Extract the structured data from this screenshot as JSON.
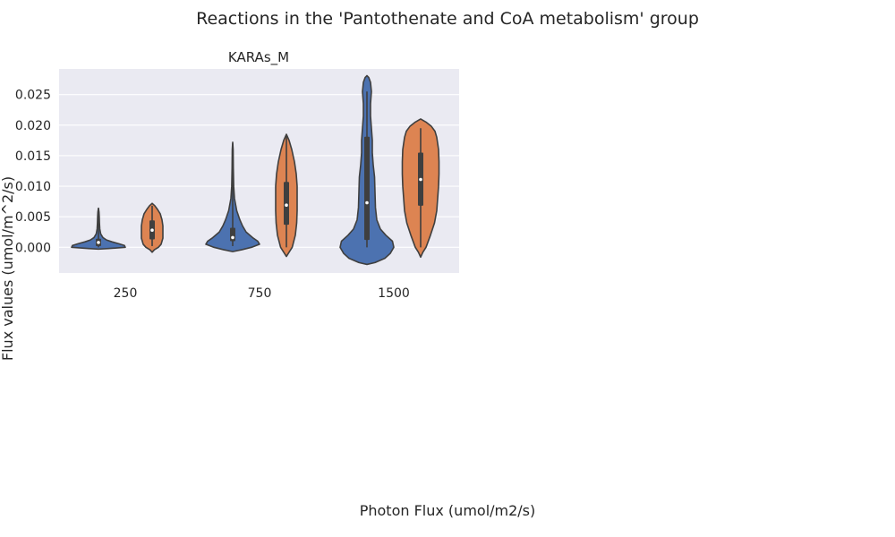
{
  "figure": {
    "suptitle": "Reactions in the 'Pantothenate and CoA metabolism' group",
    "xlabel": "Photon Flux (umol/m2/s)",
    "ylabel": "Flux values (umol/m^2/s)"
  },
  "chart_data": {
    "type": "violin",
    "title": "KARAs_M",
    "xlabel": "Photon Flux (umol/m2/s)",
    "ylabel": "Flux values (umol/m^2/s)",
    "categories": [
      "250",
      "750",
      "1500"
    ],
    "ylim": [
      -0.0042,
      0.0292
    ],
    "yticks": [
      0.0,
      0.005,
      0.01,
      0.015,
      0.02,
      0.025
    ],
    "ytick_labels": [
      "0.000",
      "0.005",
      "0.010",
      "0.015",
      "0.020",
      "0.025"
    ],
    "grid": true,
    "legend": "none",
    "colors": [
      "#4c72b0",
      "#dd8452"
    ],
    "series": [
      {
        "color": "#4c72b0",
        "violins": [
          {
            "category": "250",
            "min": -0.0003,
            "max": 0.0064,
            "q1": 0.0002,
            "median": 0.0008,
            "q3": 0.0014,
            "whisker_low": 0.0,
            "whisker_high": 0.0064,
            "profile": [
              [
                -0.0003,
                0.0
              ],
              [
                -0.0002,
                0.22
              ],
              [
                0.0,
                0.6
              ],
              [
                0.0003,
                0.58
              ],
              [
                0.0006,
                0.45
              ],
              [
                0.0009,
                0.3
              ],
              [
                0.0012,
                0.18
              ],
              [
                0.0016,
                0.1
              ],
              [
                0.0022,
                0.05
              ],
              [
                0.003,
                0.03
              ],
              [
                0.004,
                0.022
              ],
              [
                0.005,
                0.018
              ],
              [
                0.0058,
                0.012
              ],
              [
                0.0064,
                0.0
              ]
            ]
          },
          {
            "category": "750",
            "min": -0.0007,
            "max": 0.0172,
            "q1": 0.001,
            "median": 0.0016,
            "q3": 0.0032,
            "whisker_low": 0.0002,
            "whisker_high": 0.017,
            "profile": [
              [
                -0.0007,
                0.0
              ],
              [
                -0.0004,
                0.2
              ],
              [
                0.0,
                0.42
              ],
              [
                0.0005,
                0.6
              ],
              [
                0.001,
                0.56
              ],
              [
                0.0015,
                0.46
              ],
              [
                0.0025,
                0.3
              ],
              [
                0.0035,
                0.22
              ],
              [
                0.0045,
                0.16
              ],
              [
                0.006,
                0.09
              ],
              [
                0.008,
                0.04
              ],
              [
                0.01,
                0.022
              ],
              [
                0.013,
                0.014
              ],
              [
                0.016,
                0.01
              ],
              [
                0.0172,
                0.0
              ]
            ]
          },
          {
            "category": "1500",
            "min": -0.0028,
            "max": 0.0281,
            "q1": 0.0012,
            "median": 0.0073,
            "q3": 0.0181,
            "whisker_low": 0.0,
            "whisker_high": 0.0255,
            "profile": [
              [
                -0.0028,
                0.0
              ],
              [
                -0.0025,
                0.18
              ],
              [
                -0.0018,
                0.4
              ],
              [
                -0.001,
                0.52
              ],
              [
                0.0,
                0.6
              ],
              [
                0.001,
                0.57
              ],
              [
                0.002,
                0.42
              ],
              [
                0.003,
                0.3
              ],
              [
                0.0045,
                0.22
              ],
              [
                0.0065,
                0.19
              ],
              [
                0.009,
                0.18
              ],
              [
                0.0115,
                0.17
              ],
              [
                0.0135,
                0.14
              ],
              [
                0.0155,
                0.12
              ],
              [
                0.0175,
                0.12
              ],
              [
                0.0195,
                0.1
              ],
              [
                0.0215,
                0.08
              ],
              [
                0.0235,
                0.08
              ],
              [
                0.0255,
                0.1
              ],
              [
                0.027,
                0.08
              ],
              [
                0.0278,
                0.04
              ],
              [
                0.0281,
                0.0
              ]
            ]
          }
        ]
      },
      {
        "color": "#dd8452",
        "violins": [
          {
            "category": "250",
            "min": -0.0008,
            "max": 0.0072,
            "q1": 0.0013,
            "median": 0.0028,
            "q3": 0.0044,
            "whisker_low": 0.0002,
            "whisker_high": 0.0068,
            "profile": [
              [
                -0.0008,
                0.0
              ],
              [
                -0.0004,
                0.05
              ],
              [
                0.0,
                0.14
              ],
              [
                0.0005,
                0.2
              ],
              [
                0.0015,
                0.24
              ],
              [
                0.0025,
                0.24
              ],
              [
                0.0035,
                0.24
              ],
              [
                0.0045,
                0.22
              ],
              [
                0.0055,
                0.18
              ],
              [
                0.0062,
                0.12
              ],
              [
                0.0068,
                0.06
              ],
              [
                0.0072,
                0.0
              ]
            ]
          },
          {
            "category": "750",
            "min": -0.0015,
            "max": 0.0185,
            "q1": 0.0037,
            "median": 0.0069,
            "q3": 0.0107,
            "whisker_low": 0.0,
            "whisker_high": 0.0182,
            "profile": [
              [
                -0.0015,
                0.0
              ],
              [
                -0.0008,
                0.06
              ],
              [
                0.0,
                0.13
              ],
              [
                0.002,
                0.2
              ],
              [
                0.004,
                0.23
              ],
              [
                0.006,
                0.24
              ],
              [
                0.008,
                0.24
              ],
              [
                0.01,
                0.24
              ],
              [
                0.012,
                0.22
              ],
              [
                0.014,
                0.18
              ],
              [
                0.016,
                0.12
              ],
              [
                0.0175,
                0.06
              ],
              [
                0.0185,
                0.0
              ]
            ]
          },
          {
            "category": "1500",
            "min": -0.0016,
            "max": 0.021,
            "q1": 0.0068,
            "median": 0.0111,
            "q3": 0.0155,
            "whisker_low": 0.0,
            "whisker_high": 0.0195,
            "profile": [
              [
                -0.0016,
                0.0
              ],
              [
                -0.0008,
                0.05
              ],
              [
                0.0,
                0.12
              ],
              [
                0.002,
                0.22
              ],
              [
                0.004,
                0.31
              ],
              [
                0.006,
                0.36
              ],
              [
                0.008,
                0.38
              ],
              [
                0.01,
                0.4
              ],
              [
                0.012,
                0.41
              ],
              [
                0.014,
                0.41
              ],
              [
                0.016,
                0.4
              ],
              [
                0.018,
                0.36
              ],
              [
                0.019,
                0.32
              ],
              [
                0.0198,
                0.24
              ],
              [
                0.0205,
                0.12
              ],
              [
                0.021,
                0.0
              ]
            ]
          }
        ]
      }
    ]
  }
}
